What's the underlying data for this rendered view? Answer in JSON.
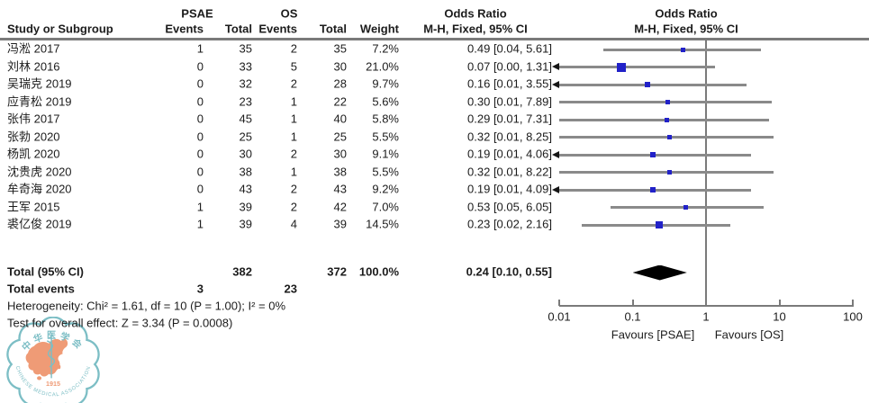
{
  "colors": {
    "text": "#1c1c1c",
    "ci_line": "#8a8a8a",
    "marker_blue": "#2121c8",
    "diamond_black": "#000000",
    "axis_gray": "#7a7a7a",
    "logo_teal": "#7cbec5",
    "logo_orange": "#ef9b76"
  },
  "header": {
    "col_study": "Study or Subgroup",
    "group_psae": "PSAE",
    "group_os": "OS",
    "col_events": "Events",
    "col_total": "Total",
    "col_events2": "Events",
    "col_total2": "Total",
    "col_weight": "Weight",
    "or_title": "Odds Ratio",
    "or_subtitle": "M-H, Fixed, 95% CI",
    "plot_title": "Odds Ratio",
    "plot_subtitle": "M-H, Fixed, 95% CI"
  },
  "chart_data": {
    "type": "forest",
    "effect_measure": "Odds Ratio",
    "method": "M-H, Fixed, 95% CI",
    "x_scale": "log10",
    "x_range": [
      0.01,
      100
    ],
    "null_line": 1,
    "x_ticks": [
      "0.01",
      "0.1",
      "1",
      "10",
      "100"
    ],
    "studies": [
      {
        "name": "冯淞 2017",
        "psae_events": "1",
        "psae_total": "35",
        "os_events": "2",
        "os_total": "35",
        "weight": "7.2%",
        "weight_pct": 7.2,
        "or": 0.49,
        "ci_low": 0.04,
        "ci_high": 5.61,
        "or_text": "0.49 [0.04, 5.61]",
        "arrow_left": false
      },
      {
        "name": "刘林 2016",
        "psae_events": "0",
        "psae_total": "33",
        "os_events": "5",
        "os_total": "30",
        "weight": "21.0%",
        "weight_pct": 21.0,
        "or": 0.07,
        "ci_low": 0.0,
        "ci_high": 1.31,
        "or_text": "0.07 [0.00, 1.31]",
        "arrow_left": true
      },
      {
        "name": "吴瑞克 2019",
        "psae_events": "0",
        "psae_total": "32",
        "os_events": "2",
        "os_total": "28",
        "weight": "9.7%",
        "weight_pct": 9.7,
        "or": 0.16,
        "ci_low": 0.01,
        "ci_high": 3.55,
        "or_text": "0.16 [0.01, 3.55]",
        "arrow_left": true
      },
      {
        "name": "应青松 2019",
        "psae_events": "0",
        "psae_total": "23",
        "os_events": "1",
        "os_total": "22",
        "weight": "5.6%",
        "weight_pct": 5.6,
        "or": 0.3,
        "ci_low": 0.01,
        "ci_high": 7.89,
        "or_text": "0.30 [0.01, 7.89]",
        "arrow_left": false
      },
      {
        "name": "张伟 2017",
        "psae_events": "0",
        "psae_total": "45",
        "os_events": "1",
        "os_total": "40",
        "weight": "5.8%",
        "weight_pct": 5.8,
        "or": 0.29,
        "ci_low": 0.01,
        "ci_high": 7.31,
        "or_text": "0.29 [0.01, 7.31]",
        "arrow_left": false
      },
      {
        "name": "张勃 2020",
        "psae_events": "0",
        "psae_total": "25",
        "os_events": "1",
        "os_total": "25",
        "weight": "5.5%",
        "weight_pct": 5.5,
        "or": 0.32,
        "ci_low": 0.01,
        "ci_high": 8.25,
        "or_text": "0.32 [0.01, 8.25]",
        "arrow_left": false
      },
      {
        "name": "杨凯 2020",
        "psae_events": "0",
        "psae_total": "30",
        "os_events": "2",
        "os_total": "30",
        "weight": "9.1%",
        "weight_pct": 9.1,
        "or": 0.19,
        "ci_low": 0.01,
        "ci_high": 4.06,
        "or_text": "0.19 [0.01, 4.06]",
        "arrow_left": true
      },
      {
        "name": "沈贵虎 2020",
        "psae_events": "0",
        "psae_total": "38",
        "os_events": "1",
        "os_total": "38",
        "weight": "5.5%",
        "weight_pct": 5.5,
        "or": 0.32,
        "ci_low": 0.01,
        "ci_high": 8.22,
        "or_text": "0.32 [0.01, 8.22]",
        "arrow_left": false
      },
      {
        "name": "牟奇海 2020",
        "psae_events": "0",
        "psae_total": "43",
        "os_events": "2",
        "os_total": "43",
        "weight": "9.2%",
        "weight_pct": 9.2,
        "or": 0.19,
        "ci_low": 0.01,
        "ci_high": 4.09,
        "or_text": "0.19 [0.01, 4.09]",
        "arrow_left": true
      },
      {
        "name": "王军 2015",
        "psae_events": "1",
        "psae_total": "39",
        "os_events": "2",
        "os_total": "42",
        "weight": "7.0%",
        "weight_pct": 7.0,
        "or": 0.53,
        "ci_low": 0.05,
        "ci_high": 6.05,
        "or_text": "0.53 [0.05, 6.05]",
        "arrow_left": false
      },
      {
        "name": "裘亿俊 2019",
        "psae_events": "1",
        "psae_total": "39",
        "os_events": "4",
        "os_total": "39",
        "weight": "14.5%",
        "weight_pct": 14.5,
        "or": 0.23,
        "ci_low": 0.02,
        "ci_high": 2.16,
        "or_text": "0.23 [0.02, 2.16]",
        "arrow_left": false
      }
    ],
    "total": {
      "label": "Total (95% CI)",
      "psae_total": "382",
      "os_total": "372",
      "weight": "100.0%",
      "or": 0.24,
      "ci_low": 0.1,
      "ci_high": 0.55,
      "or_text": "0.24 [0.10, 0.55]"
    },
    "total_events": {
      "label": "Total events",
      "psae": "3",
      "os": "23"
    },
    "heterogeneity": "Heterogeneity: Chi² = 1.61, df = 10 (P = 1.00); I² = 0%",
    "overall_effect": "Test for overall effect: Z = 3.34 (P = 0.0008)",
    "favours_left": "Favours [PSAE]",
    "favours_right": "Favours [OS]"
  },
  "logo": {
    "top_text": "中华医学会",
    "year": "1915",
    "bottom_text": "CHINESE MEDICAL ASSOCIATION"
  }
}
